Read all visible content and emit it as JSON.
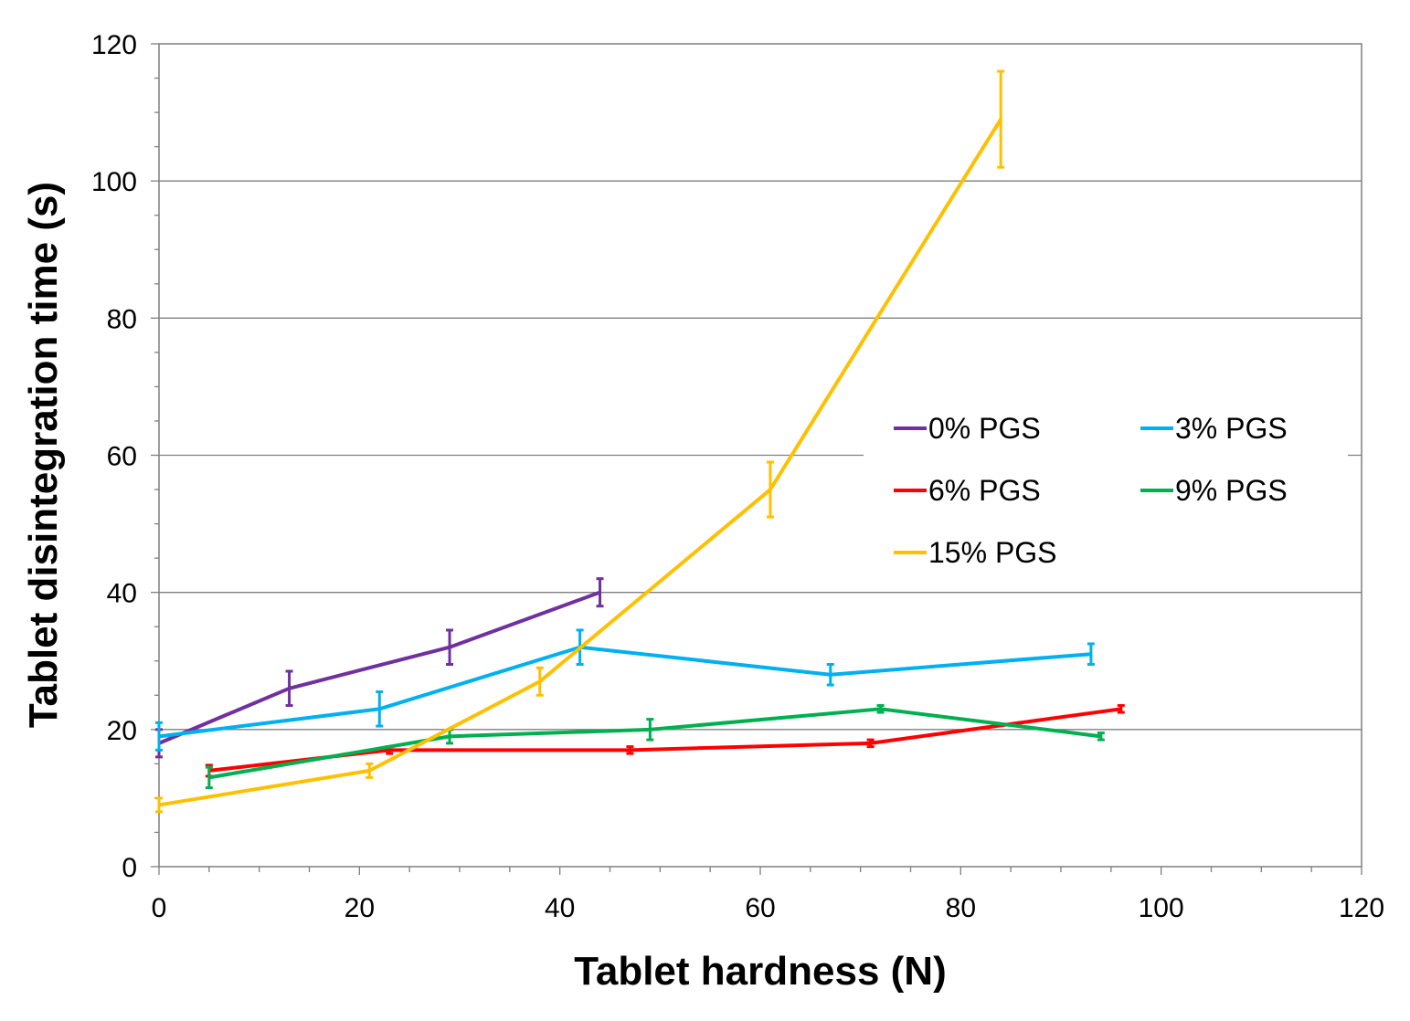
{
  "chart_data": {
    "type": "line",
    "title": "",
    "xlabel": "Tablet hardness (N)",
    "ylabel": "Tablet disintegration time (s)",
    "xlim": [
      0,
      120
    ],
    "ylim": [
      0,
      120
    ],
    "x_major_step": 20,
    "x_minor_step": 5,
    "y_major_step": 20,
    "y_minor_step": 5,
    "grid": "horizontal-major",
    "legend_position": "center-right",
    "series": [
      {
        "name": "0% PGS",
        "color": "#7030A0",
        "x": [
          0,
          13,
          29,
          44
        ],
        "y": [
          18,
          26,
          32,
          40
        ],
        "err": [
          2,
          2.5,
          2.5,
          2
        ]
      },
      {
        "name": "3% PGS",
        "color": "#00B0F0",
        "x": [
          0,
          22,
          42,
          67,
          93
        ],
        "y": [
          19,
          23,
          32,
          28,
          31
        ],
        "err": [
          2,
          2.5,
          2.5,
          1.5,
          1.5
        ]
      },
      {
        "name": "6% PGS",
        "color": "#FF0000",
        "x": [
          5,
          23,
          47,
          71,
          96
        ],
        "y": [
          14,
          17,
          17,
          18,
          23
        ],
        "err": [
          0.8,
          0.5,
          0.5,
          0.5,
          0.5
        ]
      },
      {
        "name": "9% PGS",
        "color": "#00B050",
        "x": [
          5,
          29,
          49,
          72,
          94
        ],
        "y": [
          13,
          19,
          20,
          23,
          19
        ],
        "err": [
          1.5,
          1,
          1.5,
          0.5,
          0.5
        ]
      },
      {
        "name": "15% PGS",
        "color": "#FFC000",
        "x": [
          0,
          21,
          38,
          61,
          84
        ],
        "y": [
          9,
          14,
          27,
          55,
          109
        ],
        "err": [
          1,
          1,
          2,
          4,
          7
        ]
      }
    ]
  }
}
